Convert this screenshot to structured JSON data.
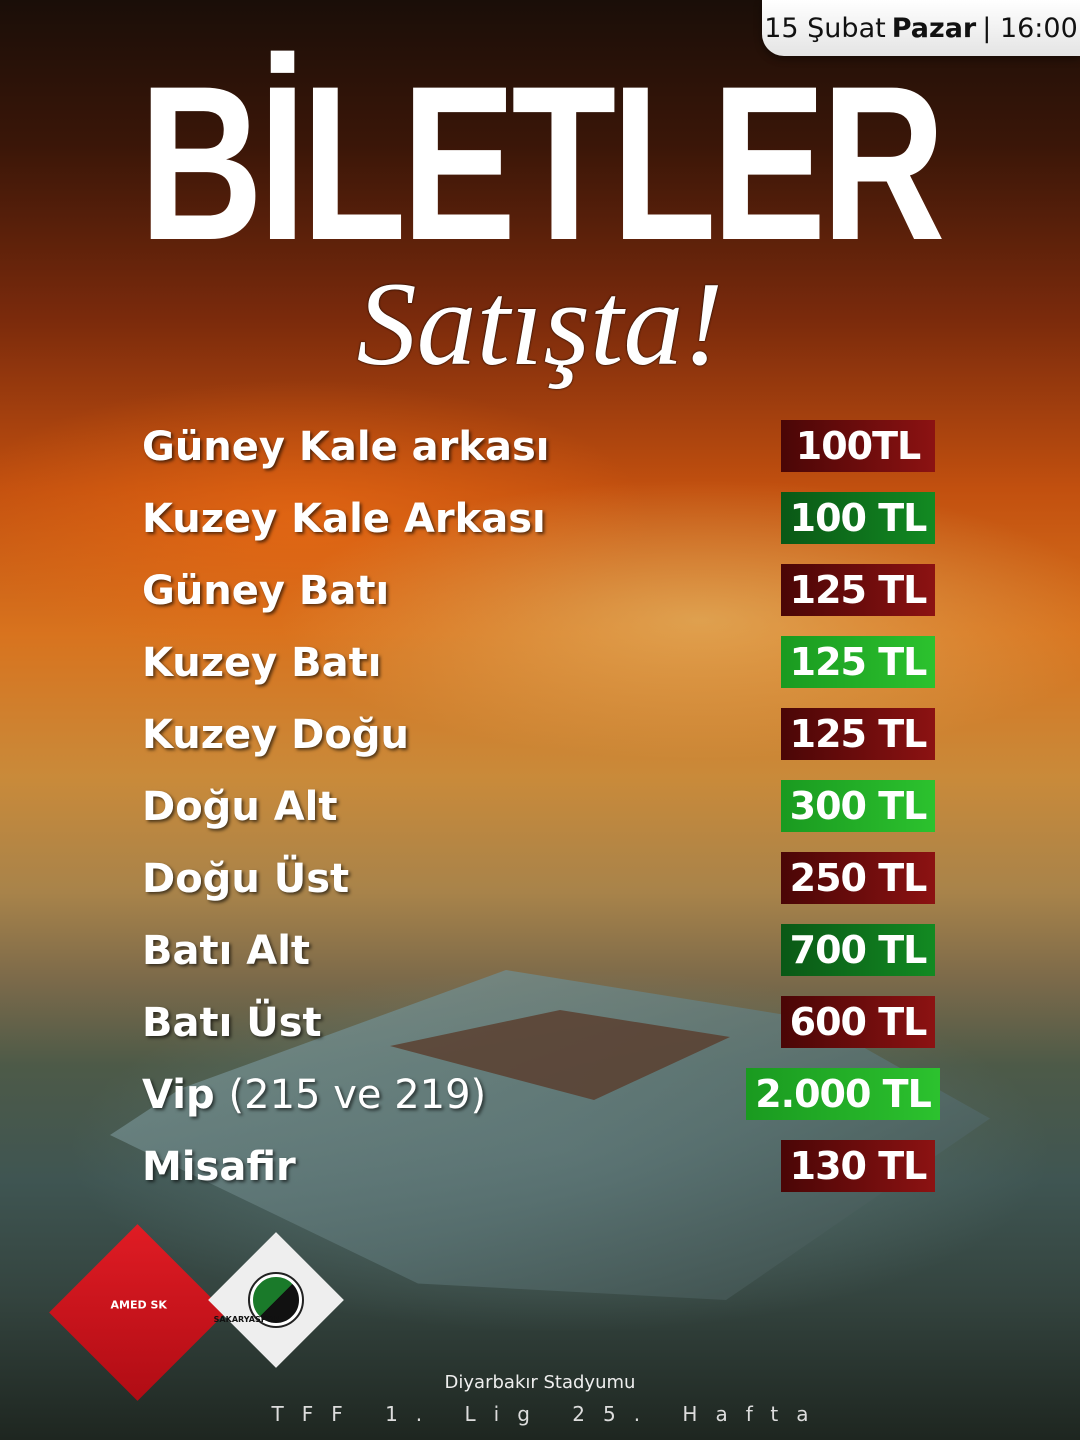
{
  "header": {
    "date": "15 Şubat",
    "day": "Pazar",
    "separator": "|",
    "time": "16:00"
  },
  "title": "BİLETLER",
  "subtitle": "Satışta!",
  "prices": [
    {
      "section": "Güney Kale arkası",
      "price": "100TL",
      "color": "dark-red"
    },
    {
      "section": "Kuzey Kale Arkası",
      "price": "100 TL",
      "color": "dark-green"
    },
    {
      "section": "Güney Batı",
      "price": "125 TL",
      "color": "dark-red"
    },
    {
      "section": "Kuzey Batı",
      "price": "125 TL",
      "color": "bright-green"
    },
    {
      "section": "Kuzey Doğu",
      "price": "125 TL",
      "color": "dark-red"
    },
    {
      "section": "Doğu Alt",
      "price": "300 TL",
      "color": "bright-green"
    },
    {
      "section": "Doğu Üst",
      "price": "250 TL",
      "color": "dark-red"
    },
    {
      "section": "Batı Alt",
      "price": "700 TL",
      "color": "dark-green"
    },
    {
      "section": "Batı Üst",
      "price": "600 TL",
      "color": "dark-red"
    },
    {
      "section": "Vip",
      "section_note": "(215 ve 219)",
      "price": "2.000 TL",
      "color": "bright-green"
    },
    {
      "section": "Misafir",
      "price": "130 TL",
      "color": "dark-red"
    }
  ],
  "teams": {
    "home": "AMED SK",
    "away": "SAKARYASPOR"
  },
  "footer": {
    "venue": "Diyarbakır Stadyumu",
    "league": "TFF 1. Lig 25. Hafta"
  },
  "colors": {
    "dark-red": "#8c1212",
    "dark-green": "#128a22",
    "bright-green": "#2cc22e"
  }
}
